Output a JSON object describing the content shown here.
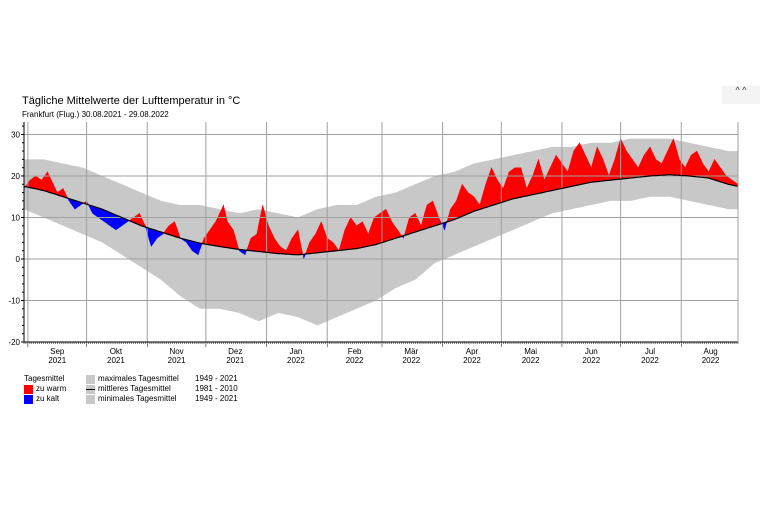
{
  "title": "Tägliche Mittelwerte der Lufttemperatur in °C",
  "subtitle": "Frankfurt (Flug.)  30.08.2021 - 29.08.2022",
  "corner_glyph": "^ ^",
  "legend": {
    "daily_mean": "Tagesmittel",
    "too_warm": "zu warm",
    "too_cold": "zu kalt",
    "max_daily": "maximales Tagesmittel",
    "max_period": "1949 - 2021",
    "mean_daily": "mittleres Tagesmittel",
    "mean_period": "1981 - 2010",
    "min_daily": "minimales Tagesmittel",
    "min_period": "1949 - 2021"
  },
  "colors": {
    "warm": "#ff0000",
    "cold": "#0000ff",
    "band": "#c8c8c8",
    "grid": "#a0a0a0",
    "mean": "#000000"
  },
  "chart_data": {
    "type": "area",
    "title": "Tägliche Mittelwerte der Lufttemperatur in °C",
    "ylim": [
      -20,
      33
    ],
    "yticks": [
      -20,
      -10,
      0,
      10,
      20,
      30
    ],
    "xlim_days": [
      0,
      365
    ],
    "grid": true,
    "months": [
      {
        "label": "Sep",
        "year": "2021",
        "start": 2,
        "mid": 17
      },
      {
        "label": "Okt",
        "year": "2021",
        "start": 32,
        "mid": 47
      },
      {
        "label": "Nov",
        "year": "2021",
        "start": 63,
        "mid": 78
      },
      {
        "label": "Dez",
        "year": "2021",
        "start": 93,
        "mid": 108
      },
      {
        "label": "Jan",
        "year": "2022",
        "start": 124,
        "mid": 139
      },
      {
        "label": "Feb",
        "year": "2022",
        "start": 155,
        "mid": 169
      },
      {
        "label": "Mär",
        "year": "2022",
        "start": 183,
        "mid": 198
      },
      {
        "label": "Apr",
        "year": "2022",
        "start": 214,
        "mid": 229
      },
      {
        "label": "Mai",
        "year": "2022",
        "start": 244,
        "mid": 259
      },
      {
        "label": "Jun",
        "year": "2022",
        "start": 275,
        "mid": 290
      },
      {
        "label": "Jul",
        "year": "2022",
        "start": 305,
        "mid": 320
      },
      {
        "label": "Aug",
        "year": "2022",
        "start": 336,
        "mid": 351
      }
    ],
    "series": [
      {
        "name": "maximales Tagesmittel 1949 - 2021",
        "x": [
          0,
          10,
          20,
          30,
          40,
          50,
          60,
          70,
          80,
          90,
          100,
          110,
          120,
          130,
          140,
          150,
          160,
          170,
          180,
          190,
          200,
          210,
          220,
          230,
          240,
          250,
          260,
          270,
          280,
          290,
          300,
          310,
          320,
          330,
          340,
          350,
          360,
          365
        ],
        "values": [
          24,
          24,
          23,
          22,
          20,
          18,
          16,
          14,
          13,
          13,
          12,
          11,
          12,
          11,
          10,
          12,
          13,
          13,
          15,
          16,
          18,
          20,
          21,
          23,
          24,
          25,
          26,
          27,
          27,
          28,
          28,
          29,
          29,
          29,
          28,
          27,
          26,
          26
        ]
      },
      {
        "name": "mittleres Tagesmittel 1981 - 2010",
        "x": [
          0,
          10,
          20,
          30,
          40,
          50,
          60,
          70,
          80,
          90,
          100,
          110,
          120,
          130,
          140,
          150,
          160,
          170,
          180,
          190,
          200,
          210,
          220,
          230,
          240,
          250,
          260,
          270,
          280,
          290,
          300,
          310,
          320,
          330,
          340,
          350,
          360,
          365
        ],
        "values": [
          17.5,
          16.5,
          15,
          13.5,
          12,
          10,
          8,
          6.5,
          5,
          3.8,
          3,
          2.3,
          1.8,
          1.3,
          1,
          1.5,
          2,
          2.5,
          3.5,
          5,
          6.5,
          8,
          9.5,
          11.5,
          13,
          14.5,
          15.5,
          16.5,
          17.5,
          18.5,
          19,
          19.5,
          20,
          20.3,
          20,
          19.5,
          18,
          17.5
        ]
      },
      {
        "name": "minimales Tagesmittel 1949 - 2021",
        "x": [
          0,
          10,
          20,
          30,
          40,
          50,
          60,
          70,
          80,
          90,
          100,
          110,
          120,
          130,
          140,
          150,
          160,
          170,
          180,
          190,
          200,
          210,
          220,
          230,
          240,
          250,
          260,
          270,
          280,
          290,
          300,
          310,
          320,
          330,
          340,
          350,
          360,
          365
        ],
        "values": [
          12,
          10,
          8,
          6,
          4,
          1,
          -2,
          -5,
          -9,
          -12,
          -12,
          -13,
          -15,
          -13,
          -14,
          -16,
          -14,
          -12,
          -10,
          -7,
          -5,
          -1,
          1,
          3,
          5,
          7,
          9,
          11,
          12,
          13,
          14,
          14,
          15,
          15,
          14,
          13,
          12,
          12
        ]
      },
      {
        "name": "Tagesmittel",
        "x": [
          0,
          3,
          6,
          9,
          12,
          15,
          17,
          20,
          23,
          26,
          29,
          32,
          35,
          38,
          41,
          44,
          47,
          50,
          53,
          56,
          59,
          62,
          65,
          68,
          71,
          74,
          77,
          80,
          83,
          86,
          89,
          92,
          95,
          98,
          100,
          102,
          104,
          107,
          110,
          113,
          116,
          119,
          122,
          125,
          128,
          131,
          134,
          137,
          140,
          143,
          146,
          149,
          152,
          155,
          158,
          161,
          164,
          167,
          170,
          173,
          176,
          179,
          182,
          185,
          188,
          191,
          194,
          197,
          200,
          203,
          206,
          209,
          212,
          215,
          218,
          221,
          224,
          227,
          230,
          233,
          236,
          239,
          242,
          245,
          248,
          251,
          254,
          257,
          260,
          263,
          266,
          269,
          272,
          275,
          278,
          281,
          284,
          287,
          290,
          293,
          296,
          299,
          302,
          305,
          308,
          311,
          314,
          317,
          320,
          323,
          326,
          329,
          332,
          335,
          338,
          341,
          344,
          347,
          350,
          353,
          356,
          359,
          362,
          365
        ],
        "values": [
          17,
          19,
          20,
          19,
          21,
          18,
          16,
          17,
          14,
          12,
          13,
          14,
          11,
          10,
          9,
          8,
          7,
          8,
          9,
          10,
          11,
          8,
          3,
          5,
          6,
          8,
          9,
          5,
          4,
          2,
          1,
          5,
          7,
          9,
          11,
          13,
          9,
          7,
          2,
          1,
          5,
          6,
          13,
          8,
          5,
          3,
          2,
          5,
          7,
          0,
          4,
          6,
          9,
          5,
          4,
          2,
          7,
          10,
          8,
          9,
          6,
          10,
          11,
          12,
          9,
          7,
          5,
          10,
          11,
          8,
          13,
          14,
          10,
          7,
          12,
          14,
          18,
          16,
          15,
          13,
          18,
          22,
          19,
          17,
          21,
          22,
          22,
          17,
          20,
          24,
          19,
          22,
          25,
          23,
          21,
          26,
          28,
          25,
          22,
          27,
          24,
          20,
          24,
          29,
          26,
          24,
          22,
          25,
          27,
          24,
          23,
          26,
          29,
          24,
          22,
          25,
          26,
          23,
          21,
          24,
          22,
          20,
          19,
          18
        ]
      }
    ]
  }
}
